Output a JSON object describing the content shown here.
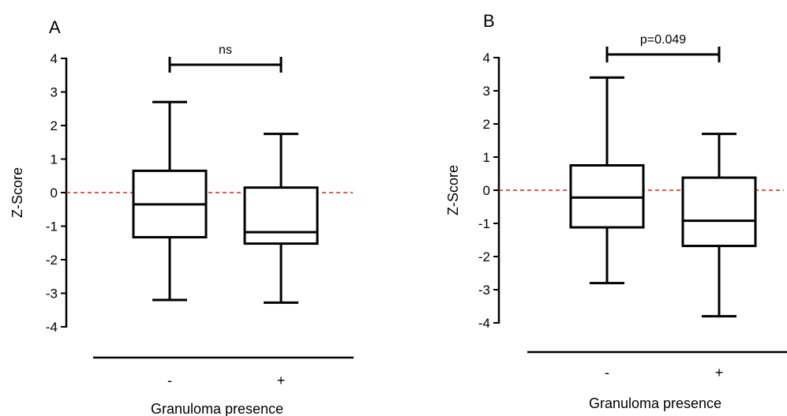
{
  "chart_data": [
    {
      "type": "box",
      "panel": "A",
      "ylabel": "Z-Score",
      "xlabel": "Granuloma presence",
      "ylim": [
        -4,
        4
      ],
      "yticks": [
        "4",
        "3",
        "2",
        "1",
        "0",
        "-1",
        "-2",
        "-3",
        "-4"
      ],
      "categories": [
        "-",
        "+"
      ],
      "reference_line": {
        "y": 0,
        "color": "#e0201b",
        "style": "dashed"
      },
      "boxes": [
        {
          "category": "-",
          "min": -3.2,
          "q1": -1.33,
          "median": -0.35,
          "q3": 0.65,
          "max": 2.7
        },
        {
          "category": "+",
          "min": -3.28,
          "q1": -1.52,
          "median": -1.18,
          "q3": 0.15,
          "max": 1.75
        }
      ],
      "significance": {
        "label": "ns",
        "from": "-",
        "to": "+"
      }
    },
    {
      "type": "box",
      "panel": "B",
      "ylabel": "Z-Score",
      "xlabel": "Granuloma presence",
      "ylim": [
        -4,
        4
      ],
      "yticks": [
        "4",
        "3",
        "2",
        "1",
        "0",
        "-1",
        "-2",
        "-3",
        "-4"
      ],
      "categories": [
        "-",
        "+"
      ],
      "reference_line": {
        "y": 0,
        "color": "#e0201b",
        "style": "dashed"
      },
      "boxes": [
        {
          "category": "-",
          "min": -2.8,
          "q1": -1.12,
          "median": -0.22,
          "q3": 0.75,
          "max": 3.4
        },
        {
          "category": "+",
          "min": -3.8,
          "q1": -1.68,
          "median": -0.92,
          "q3": 0.38,
          "max": 1.7
        }
      ],
      "significance": {
        "label": "p=0.049",
        "from": "-",
        "to": "+"
      }
    }
  ]
}
